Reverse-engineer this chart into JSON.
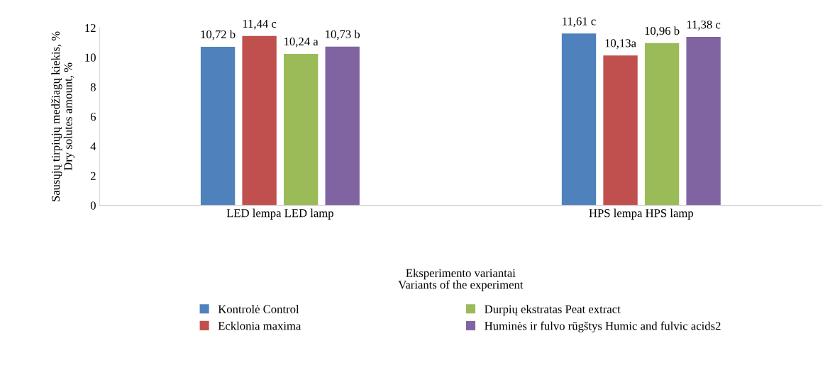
{
  "chart_data": {
    "type": "bar",
    "categories": [
      "LED lempa LED lamp",
      "HPS lempa HPS lamp"
    ],
    "series": [
      {
        "name": "Kontrolė Control",
        "color": "#4f81bd",
        "values": [
          10.72,
          11.61
        ],
        "value_labels": [
          "10,72 b",
          "11,61 c"
        ]
      },
      {
        "name": "Ecklonia maxima",
        "color": "#c0504d",
        "values": [
          11.44,
          10.13
        ],
        "value_labels": [
          "11,44 c",
          "10,13a"
        ]
      },
      {
        "name": "Durpių ekstratas Peat extract",
        "color": "#9bbb59",
        "values": [
          10.24,
          10.96
        ],
        "value_labels": [
          "10,24 a",
          "10,96 b"
        ]
      },
      {
        "name": "Huminės ir fulvo rūgštys Humic and fulvic acids2",
        "color": "#8064a2",
        "values": [
          10.73,
          11.38
        ],
        "value_labels": [
          "10,73 b",
          "11,38 c"
        ]
      }
    ],
    "xlabel": "Eksperimento variantai\nVariants of the experiment",
    "ylabel": "Sausųjų tirpiųjų medžiagų kiekis, %\nDry solutes amount, %",
    "ylim": [
      0,
      12
    ],
    "yticks": [
      0,
      2,
      4,
      6,
      8,
      10,
      12
    ],
    "grid": false,
    "legend": "bottom"
  }
}
